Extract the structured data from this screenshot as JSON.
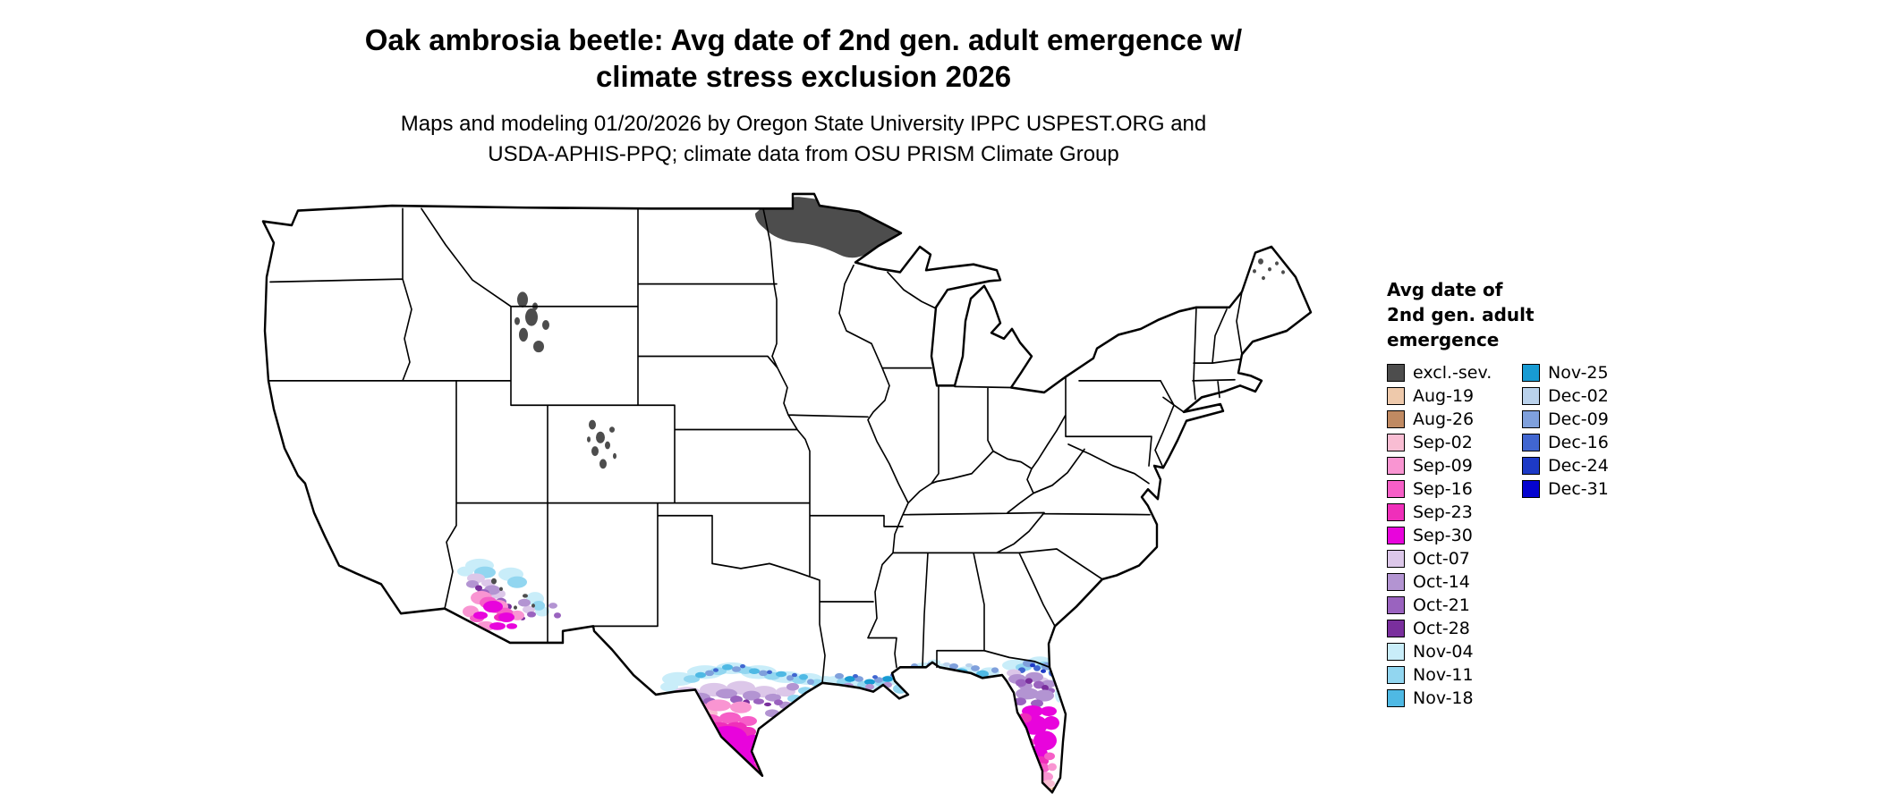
{
  "header": {
    "title_line1": "Oak ambrosia beetle: Avg date of 2nd gen. adult emergence w/",
    "title_line2": "climate stress exclusion 2026",
    "subtitle_line1": "Maps and modeling 01/20/2026 by Oregon State University IPPC USPEST.ORG and",
    "subtitle_line2": "USDA-APHIS-PPQ; climate data from OSU PRISM Climate Group"
  },
  "legend": {
    "title_lines": [
      "Avg date of",
      "2nd gen. adult",
      "emergence"
    ],
    "column1": [
      {
        "label": "excl.-sev.",
        "color": "#4d4d4d"
      },
      {
        "label": "Aug-19",
        "color": "#eec9ab"
      },
      {
        "label": "Aug-26",
        "color": "#c08a62"
      },
      {
        "label": "Sep-02",
        "color": "#f9bdd3"
      },
      {
        "label": "Sep-09",
        "color": "#f995d2"
      },
      {
        "label": "Sep-16",
        "color": "#f65ec7"
      },
      {
        "label": "Sep-23",
        "color": "#ef2fba"
      },
      {
        "label": "Sep-30",
        "color": "#e804dc"
      },
      {
        "label": "Oct-07",
        "color": "#dcc7e9"
      },
      {
        "label": "Oct-14",
        "color": "#b394d2"
      },
      {
        "label": "Oct-21",
        "color": "#9a63bf"
      },
      {
        "label": "Oct-28",
        "color": "#7a2f9d"
      },
      {
        "label": "Nov-04",
        "color": "#c9edf9"
      },
      {
        "label": "Nov-11",
        "color": "#92d6f0"
      },
      {
        "label": "Nov-18",
        "color": "#4fb9e4"
      }
    ],
    "column2": [
      {
        "label": "Nov-25",
        "color": "#189bd3"
      },
      {
        "label": "Dec-02",
        "color": "#bad2ec"
      },
      {
        "label": "Dec-09",
        "color": "#7fa0dc"
      },
      {
        "label": "Dec-16",
        "color": "#4166d0"
      },
      {
        "label": "Dec-24",
        "color": "#1d3ac6"
      },
      {
        "label": "Dec-31",
        "color": "#0504cf"
      }
    ]
  }
}
